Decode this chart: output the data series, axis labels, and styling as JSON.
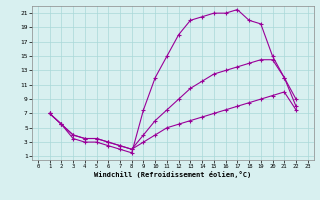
{
  "xlabel": "Windchill (Refroidissement éolien,°C)",
  "bg_color": "#d8f0f0",
  "line_color": "#990099",
  "xlim": [
    -0.5,
    23.5
  ],
  "ylim": [
    0.5,
    22
  ],
  "xticks": [
    0,
    1,
    2,
    3,
    4,
    5,
    6,
    7,
    8,
    9,
    10,
    11,
    12,
    13,
    14,
    15,
    16,
    17,
    18,
    19,
    20,
    21,
    22,
    23
  ],
  "yticks": [
    1,
    3,
    5,
    7,
    9,
    11,
    13,
    15,
    17,
    19,
    21
  ],
  "grid_color": "#aad8d8",
  "line1_x": [
    1,
    2,
    3,
    4,
    5,
    6,
    7,
    8,
    9,
    10,
    11,
    12,
    13,
    14,
    15,
    16,
    17,
    18,
    19,
    20,
    21,
    22
  ],
  "line1_y": [
    7,
    5.5,
    3.5,
    3,
    3,
    2.5,
    2,
    1.5,
    7.5,
    12,
    15,
    18,
    20,
    20.5,
    21,
    21,
    21.5,
    20,
    19.5,
    15,
    12,
    8
  ],
  "line2_x": [
    1,
    2,
    3,
    4,
    5,
    6,
    7,
    8,
    9,
    10,
    11,
    12,
    13,
    14,
    15,
    16,
    17,
    18,
    19,
    20,
    21,
    22
  ],
  "line2_y": [
    7,
    5.5,
    4,
    3.5,
    3.5,
    3,
    2.5,
    2,
    3,
    4,
    5,
    5.5,
    6,
    6.5,
    7,
    7.5,
    8,
    8.5,
    9,
    9.5,
    10,
    7.5
  ],
  "line3_x": [
    1,
    2,
    3,
    4,
    5,
    6,
    7,
    8,
    9,
    10,
    11,
    12,
    13,
    14,
    15,
    16,
    17,
    18,
    19,
    20,
    21,
    22
  ],
  "line3_y": [
    7,
    5.5,
    4,
    3.5,
    3.5,
    3,
    2.5,
    2,
    4,
    6,
    7.5,
    9,
    10.5,
    11.5,
    12.5,
    13,
    13.5,
    14,
    14.5,
    14.5,
    12,
    9
  ]
}
